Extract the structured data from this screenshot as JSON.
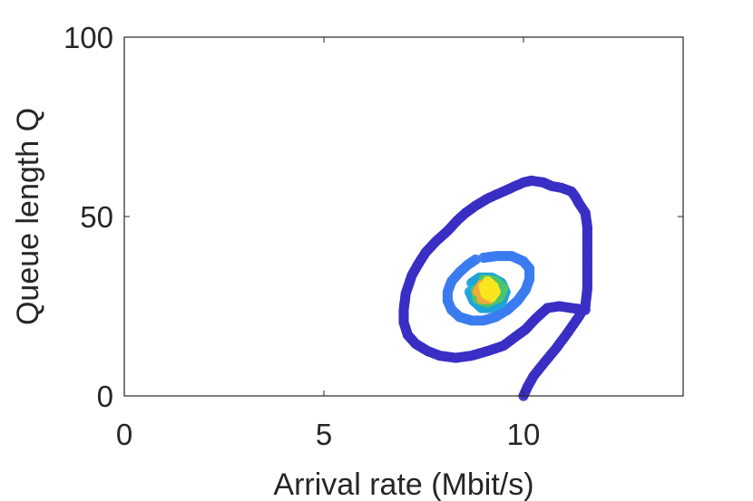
{
  "chart_data": {
    "type": "scatter",
    "title": "",
    "xlabel": "Arrival rate (Mbit/s)",
    "ylabel": "Queue length Q",
    "xlim": [
      0,
      14
    ],
    "ylim": [
      0,
      100
    ],
    "xticks": [
      "0",
      "5",
      "10"
    ],
    "yticks": [
      "0",
      "50",
      "100"
    ],
    "grid": false,
    "legend": "none",
    "colormap": "parula",
    "series": [
      {
        "color": "#3a2fc4",
        "points": [
          [
            10.0,
            0.0
          ],
          [
            10.1,
            2.5
          ],
          [
            10.25,
            5.5
          ],
          [
            10.5,
            9.0
          ],
          [
            10.8,
            13.0
          ],
          [
            11.1,
            17.5
          ],
          [
            11.35,
            21.5
          ],
          [
            11.55,
            25.0
          ],
          [
            11.6,
            30.0
          ],
          [
            11.6,
            36.0
          ],
          [
            11.6,
            42.0
          ],
          [
            11.6,
            47.0
          ],
          [
            11.55,
            51.0
          ],
          [
            11.4,
            53.5
          ],
          [
            11.3,
            55.5
          ],
          [
            11.2,
            57.0
          ],
          [
            10.95,
            58.0
          ],
          [
            10.7,
            58.5
          ],
          [
            10.5,
            59.5
          ],
          [
            10.2,
            60.0
          ],
          [
            10.0,
            59.5
          ],
          [
            9.7,
            58.0
          ],
          [
            9.4,
            56.5
          ],
          [
            9.1,
            55.0
          ],
          [
            8.8,
            53.0
          ],
          [
            8.55,
            51.0
          ],
          [
            8.35,
            49.0
          ],
          [
            8.1,
            46.0
          ],
          [
            7.8,
            43.0
          ],
          [
            7.55,
            40.0
          ],
          [
            7.35,
            36.5
          ],
          [
            7.2,
            33.5
          ],
          [
            7.05,
            28.5
          ],
          [
            7.0,
            24.0
          ],
          [
            7.0,
            20.5
          ],
          [
            7.1,
            17.0
          ],
          [
            7.3,
            14.5
          ],
          [
            7.6,
            12.5
          ],
          [
            7.9,
            11.2
          ],
          [
            8.3,
            10.6
          ],
          [
            8.7,
            11.2
          ],
          [
            9.1,
            12.5
          ],
          [
            9.5,
            14.0
          ],
          [
            9.8,
            16.5
          ],
          [
            10.05,
            18.5
          ],
          [
            10.3,
            21.5
          ],
          [
            10.6,
            24.5
          ],
          [
            10.9,
            25.0
          ],
          [
            11.2,
            24.5
          ],
          [
            11.55,
            24.0
          ]
        ]
      },
      {
        "color": "#3b7cf0",
        "points": [
          [
            9.0,
            38.5
          ],
          [
            9.35,
            39.0
          ],
          [
            9.7,
            39.0
          ],
          [
            10.0,
            37.5
          ],
          [
            10.15,
            35.5
          ],
          [
            10.15,
            32.5
          ],
          [
            10.05,
            29.5
          ],
          [
            9.85,
            26.5
          ],
          [
            9.6,
            24.0
          ],
          [
            9.3,
            22.0
          ],
          [
            9.0,
            21.0
          ],
          [
            8.7,
            21.0
          ],
          [
            8.4,
            22.0
          ],
          [
            8.2,
            24.0
          ],
          [
            8.1,
            26.5
          ],
          [
            8.1,
            29.0
          ],
          [
            8.2,
            32.0
          ],
          [
            8.4,
            34.5
          ],
          [
            8.6,
            36.5
          ],
          [
            8.8,
            38.0
          ]
        ]
      },
      {
        "color": "#1ea4d8",
        "points": [
          [
            8.7,
            31.5
          ],
          [
            8.9,
            33.0
          ],
          [
            9.2,
            33.0
          ],
          [
            9.45,
            31.5
          ],
          [
            9.55,
            29.0
          ],
          [
            9.45,
            26.0
          ],
          [
            9.2,
            24.5
          ],
          [
            8.95,
            24.5
          ],
          [
            8.75,
            26.5
          ],
          [
            8.65,
            29.0
          ]
        ]
      },
      {
        "color": "#4cc46a",
        "points": [
          [
            9.0,
            32.5
          ],
          [
            9.3,
            32.0
          ],
          [
            9.5,
            30.0
          ],
          [
            9.4,
            27.5
          ],
          [
            9.1,
            26.0
          ],
          [
            8.85,
            27.0
          ],
          [
            8.8,
            29.5
          ]
        ]
      },
      {
        "color": "#f2a93b",
        "points": [
          [
            8.85,
            29.0
          ],
          [
            8.95,
            31.0
          ],
          [
            9.15,
            31.0
          ],
          [
            9.25,
            29.0
          ],
          [
            9.15,
            27.0
          ],
          [
            8.95,
            27.0
          ]
        ]
      },
      {
        "color": "#f9e51f",
        "points": [
          [
            9.1,
            32.0
          ],
          [
            9.25,
            30.5
          ],
          [
            9.3,
            29.0
          ],
          [
            9.2,
            27.5
          ],
          [
            9.05,
            28.5
          ],
          [
            9.0,
            30.5
          ]
        ]
      }
    ]
  }
}
